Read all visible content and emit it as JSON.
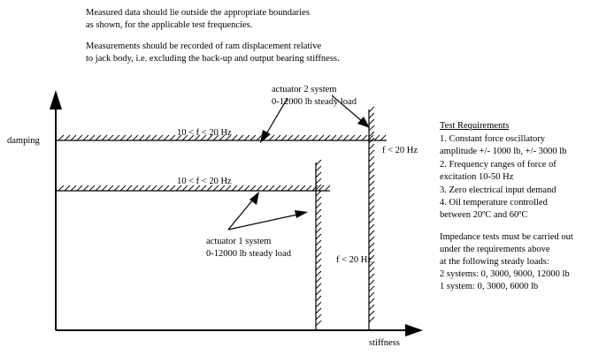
{
  "notes": {
    "line1": "Measured data should lie outside the appropriate boundaries",
    "line2": "as shown, for the applicable test frequencies.",
    "line3": "Measurements should be recorded of ram displacement relative",
    "line4": "to jack body, i.e. excluding the back-up and output bearing stiffness."
  },
  "axes": {
    "y_label": "damping",
    "x_label": "stiffness"
  },
  "boundaries": {
    "upper_freq": "10 < f < 20 Hz",
    "lower_freq": "10 < f < 20 Hz",
    "inner_vertical_freq": "f < 20 Hz",
    "outer_vertical_freq": "f < 20 Hz"
  },
  "actuator2": {
    "line1": "actuator 2 system",
    "line2": "0-12000 lb steady load"
  },
  "actuator1": {
    "line1": "actuator 1 system",
    "line2": "0-12000 lb steady load"
  },
  "requirements": {
    "title": "Test Requirements",
    "items": [
      "1. Constant force oscillatory",
      "amplitude +/- 1000 lb, +/- 3000 lb",
      "2. Frequency ranges of force of",
      "excitation 10-50 Hz",
      "3. Zero electrical input demand",
      "4. Oil temperature controlled",
      "between 20ºC and 60ºC"
    ]
  },
  "impedance": {
    "lines": [
      "Impedance tests must be carried out",
      "under the requirements above",
      "at the following steady loads:",
      "2 systems:  0, 3000, 9000, 12000 lb",
      "1 system:  0, 3000, 6000 lb"
    ]
  }
}
